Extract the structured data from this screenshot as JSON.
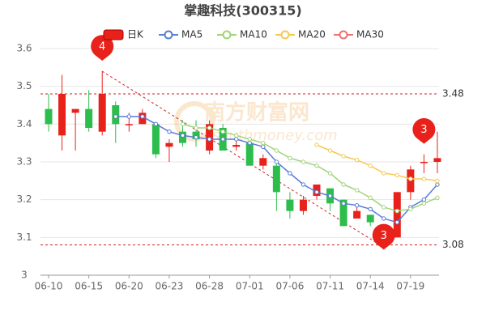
{
  "chart_data": {
    "type": "candlestick",
    "title": "掌趣科技(300315)",
    "watermark": [
      "南方财富网",
      "southmoney.com"
    ],
    "categories": [
      "06-10",
      null,
      null,
      "06-15",
      null,
      null,
      "06-20",
      null,
      null,
      "06-23",
      null,
      null,
      "06-28",
      null,
      null,
      "07-01",
      null,
      null,
      "07-06",
      null,
      null,
      "07-11",
      null,
      null,
      "07-14",
      null,
      null,
      "07-19",
      null,
      null
    ],
    "candles": {
      "name": "日K",
      "up_color": "#e8211b",
      "down_color": "#2dbd4c",
      "open": [
        3.44,
        3.37,
        3.43,
        3.44,
        3.38,
        3.45,
        3.4,
        3.4,
        3.4,
        3.34,
        3.38,
        3.38,
        3.33,
        3.39,
        3.34,
        3.35,
        3.29,
        3.29,
        3.2,
        3.17,
        3.21,
        3.23,
        3.2,
        3.15,
        3.16,
        3.12,
        3.1,
        3.22,
        3.3,
        3.3
      ],
      "high": [
        3.48,
        3.53,
        3.44,
        3.49,
        3.54,
        3.46,
        3.43,
        3.44,
        3.4,
        3.36,
        3.41,
        3.41,
        3.41,
        3.4,
        3.36,
        3.36,
        3.32,
        3.3,
        3.22,
        3.21,
        3.24,
        3.23,
        3.2,
        3.18,
        3.16,
        3.13,
        3.22,
        3.29,
        3.32,
        3.38
      ],
      "low": [
        3.38,
        3.33,
        3.33,
        3.38,
        3.37,
        3.35,
        3.38,
        3.4,
        3.31,
        3.3,
        3.34,
        3.34,
        3.32,
        3.33,
        3.33,
        3.29,
        3.28,
        3.17,
        3.15,
        3.16,
        3.2,
        3.17,
        3.13,
        3.15,
        3.13,
        3.07,
        3.1,
        3.2,
        3.27,
        3.27
      ],
      "close": [
        3.4,
        3.48,
        3.44,
        3.39,
        3.48,
        3.4,
        3.4,
        3.43,
        3.32,
        3.35,
        3.35,
        3.36,
        3.4,
        3.33,
        3.345,
        3.29,
        3.31,
        3.22,
        3.17,
        3.2,
        3.24,
        3.19,
        3.13,
        3.17,
        3.14,
        3.08,
        3.22,
        3.28,
        3.3,
        3.31
      ]
    },
    "series": [
      {
        "name": "MA5",
        "color": "#5b7bd5",
        "values": [
          null,
          null,
          null,
          null,
          null,
          3.42,
          3.42,
          3.42,
          3.4,
          3.38,
          3.37,
          3.365,
          3.36,
          3.36,
          3.36,
          3.35,
          3.34,
          3.3,
          3.27,
          3.24,
          3.22,
          3.21,
          3.19,
          3.185,
          3.175,
          3.15,
          3.14,
          3.18,
          3.2,
          3.24
        ]
      },
      {
        "name": "MA10",
        "color": "#9fd47a",
        "values": [
          null,
          null,
          null,
          null,
          null,
          null,
          null,
          null,
          null,
          null,
          3.4,
          3.39,
          3.39,
          3.38,
          3.37,
          3.36,
          3.35,
          3.33,
          3.31,
          3.3,
          3.29,
          3.27,
          3.24,
          3.225,
          3.205,
          3.18,
          3.17,
          3.175,
          3.19,
          3.205
        ]
      },
      {
        "name": "MA20",
        "color": "#f5c94f",
        "values": [
          null,
          null,
          null,
          null,
          null,
          null,
          null,
          null,
          null,
          null,
          null,
          null,
          null,
          null,
          null,
          null,
          null,
          null,
          null,
          null,
          3.345,
          3.33,
          3.315,
          3.305,
          3.29,
          3.27,
          3.265,
          3.255,
          3.255,
          3.25
        ]
      },
      {
        "name": "MA30",
        "color": "#f07070",
        "values": [
          null,
          null,
          null,
          null,
          null,
          null,
          null,
          null,
          null,
          null,
          null,
          null,
          null,
          null,
          null,
          null,
          null,
          null,
          null,
          null,
          null,
          null,
          null,
          null,
          null,
          null,
          null,
          null,
          null,
          null
        ]
      }
    ],
    "ylim": [
      3,
      3.6
    ],
    "yticks": [
      3,
      3.1,
      3.2,
      3.3,
      3.4,
      3.5,
      3.6
    ],
    "grid": true,
    "hlines": [
      3.48,
      3.08
    ],
    "pins": [
      {
        "at": 4,
        "edge": "high",
        "text": "4"
      },
      {
        "at": 25,
        "edge": "low",
        "text": "3"
      },
      {
        "at": 28,
        "edge": "high",
        "text": "3"
      }
    ]
  }
}
